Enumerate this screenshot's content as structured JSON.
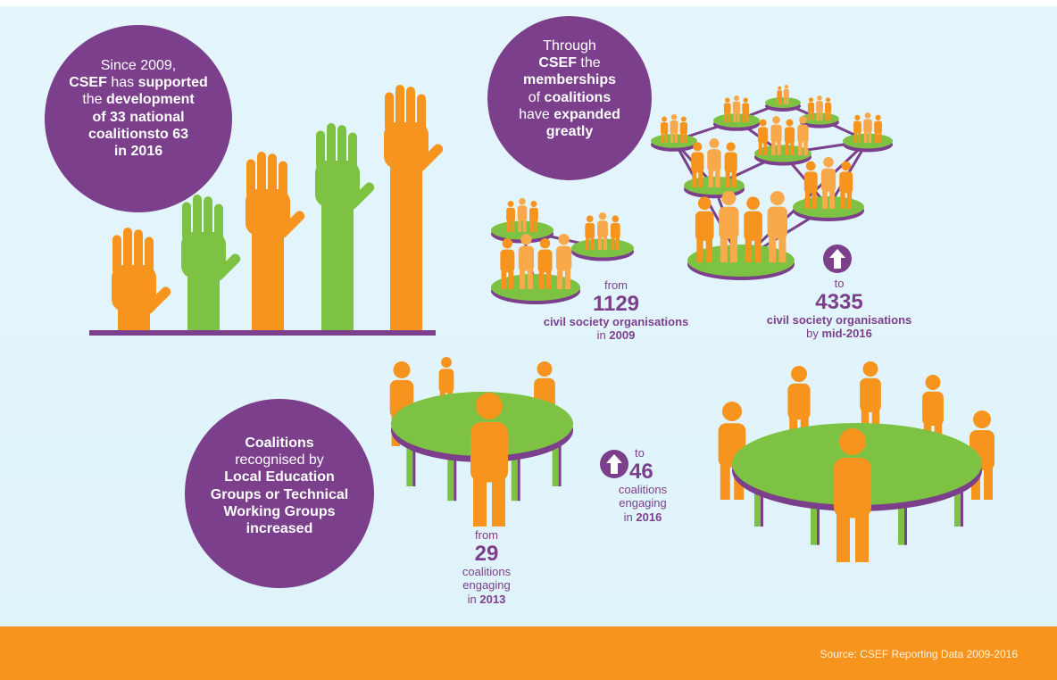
{
  "circle_1": {
    "lines": [
      [
        "Since 2009,"
      ],
      [
        "CSEF",
        " has ",
        "supported"
      ],
      [
        "the ",
        "development"
      ],
      [
        "of 33 national"
      ],
      [
        "coalitionsto 63"
      ],
      [
        "in 2016"
      ]
    ]
  },
  "circle_2": {
    "lines": [
      [
        "Through"
      ],
      [
        "CSEF",
        " the"
      ],
      [
        "memberships"
      ],
      [
        "of ",
        "coalitions"
      ],
      [
        "have ",
        "expanded"
      ],
      [
        "greatly"
      ]
    ]
  },
  "stat_from_2009": {
    "lead": "from",
    "number": 1129,
    "label": "civil society organisations",
    "when": [
      "in ",
      "2009"
    ]
  },
  "stat_to_2016": {
    "lead": "to",
    "number": 4335,
    "label": "civil society organisations",
    "when": [
      "by ",
      "mid-2016"
    ]
  },
  "circle_3": {
    "lines": [
      [
        "Coalitions"
      ],
      [
        "recognised by"
      ],
      [
        "Local Education"
      ],
      [
        "Groups or Technical"
      ],
      [
        "Working Groups"
      ],
      [
        "increased"
      ]
    ]
  },
  "stat_from_2013": {
    "lead": "from",
    "number": 29,
    "label": [
      "coalitions",
      "engaging"
    ],
    "when": [
      "in ",
      "2013"
    ]
  },
  "stat_to_2016_coalitions": {
    "lead": "to",
    "number": 46,
    "label": [
      "coalitions",
      "engaging"
    ],
    "when": [
      "in ",
      "2016"
    ]
  },
  "footer": {
    "source": "Source: CSEF Reporting Data 2009-2016"
  }
}
